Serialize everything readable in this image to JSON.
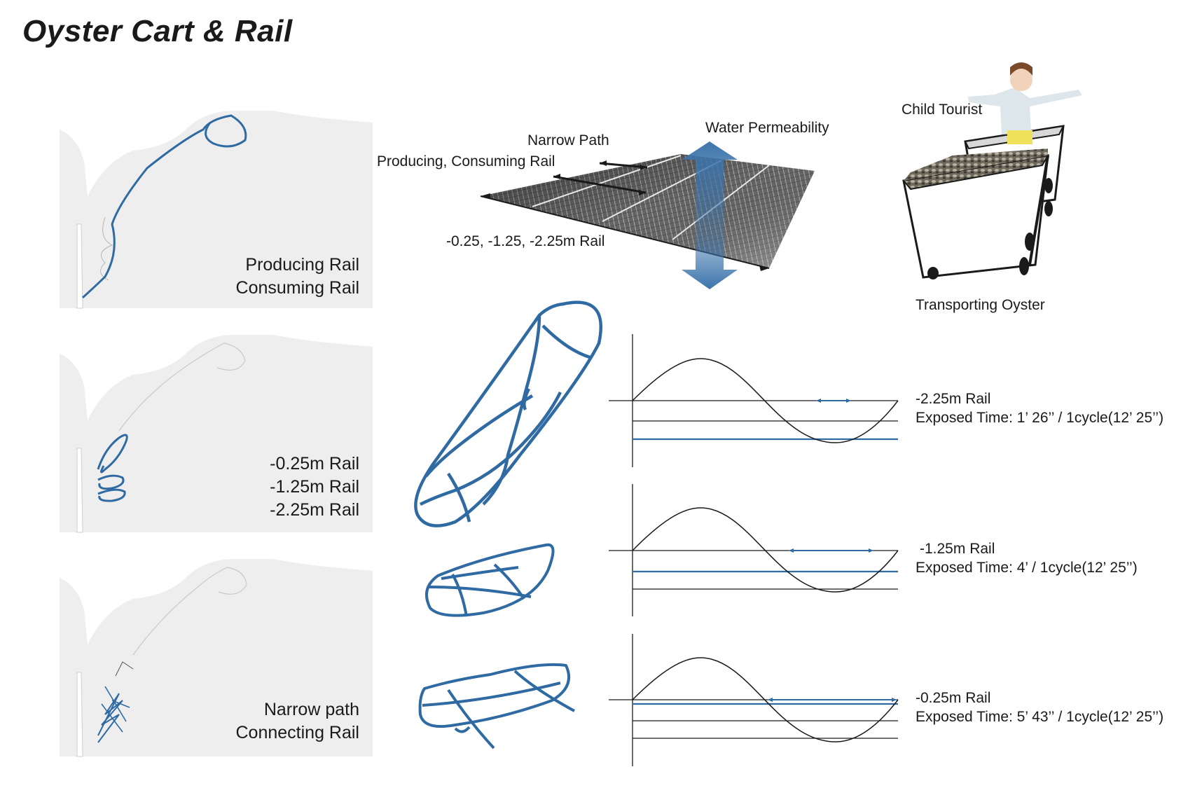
{
  "title": "Oyster Cart & Rail",
  "colors": {
    "rail_blue": "#2f6aa3",
    "map_bg": "#eeeeee",
    "arrow_blue": "#3c74ab"
  },
  "map_panels": [
    {
      "lines": [
        "Producing Rail",
        "Consuming Rail"
      ]
    },
    {
      "lines": [
        "-0.25m Rail",
        "-1.25m Rail",
        "-2.25m Rail"
      ]
    },
    {
      "lines": [
        "Narrow path",
        "Connecting Rail"
      ]
    }
  ],
  "deck_labels": {
    "water_permeability": "Water Permeability",
    "narrow_path": "Narrow Path",
    "producing_consuming": "Producing, Consuming Rail",
    "rail_depths": "-0.25, -1.25, -2.25m Rail"
  },
  "cart_labels": {
    "child_tourist": "Child Tourist",
    "transporting_oyster": "Transporting Oyster"
  },
  "tide_charts": [
    {
      "rail": "-2.25m Rail",
      "exposed": "Exposed Time: 1’ 26’’ / 1cycle(12’ 25’’)"
    },
    {
      "rail": "-1.25m Rail",
      "exposed": "Exposed Time: 4’ / 1cycle(12’ 25’’)"
    },
    {
      "rail": "-0.25m Rail",
      "exposed": "Exposed Time: 5’ 43’’ / 1cycle(12’ 25’’)"
    }
  ]
}
